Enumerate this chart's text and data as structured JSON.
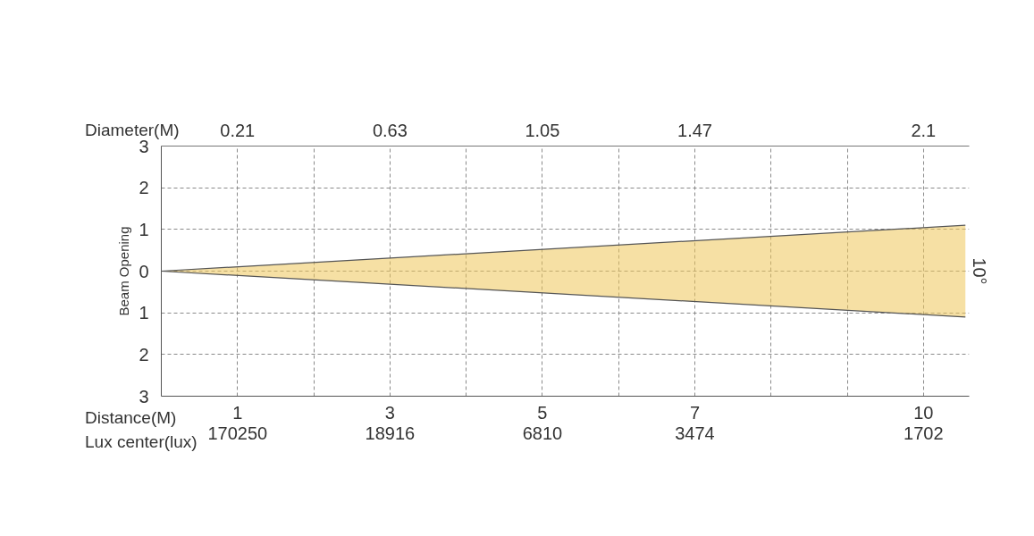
{
  "chart_data": {
    "type": "line",
    "ylabel": "Beam Opening",
    "xlabel": "Distance(M)",
    "x2label": "Diameter(M)",
    "x": [
      0,
      10.55
    ],
    "series": [
      {
        "values": [
          0,
          1.1
        ],
        "lower": [
          0,
          -1.1
        ],
        "upper": [
          0,
          1.1
        ],
        "color": "#555555"
      },
      {
        "values": [
          0,
          -1.1
        ],
        "color": "#555555"
      }
    ],
    "xlim": [
      0,
      10.6
    ],
    "x2lim": [
      0,
      2.226
    ],
    "ylim": [
      -3,
      3
    ],
    "xticks": [
      1,
      {
        "value": 2,
        "label": null
      },
      3,
      {
        "value": 4,
        "label": null
      },
      5,
      {
        "value": 6,
        "label": null
      },
      7,
      {
        "value": 8,
        "label": null
      },
      {
        "value": 9,
        "label": null
      },
      10
    ],
    "x2ticks": [
      0.21,
      0.63,
      1.05,
      1.47,
      2.1
    ],
    "yticks": [
      {
        "value": -3,
        "label": "3"
      },
      {
        "value": -2,
        "label": "2"
      },
      {
        "value": -1,
        "label": "1"
      },
      0,
      1,
      2,
      3
    ],
    "grid": true,
    "annotations": [
      "Lux center(lux)",
      "170250",
      "18916",
      "6810",
      "3474",
      "1702",
      "10°"
    ]
  }
}
